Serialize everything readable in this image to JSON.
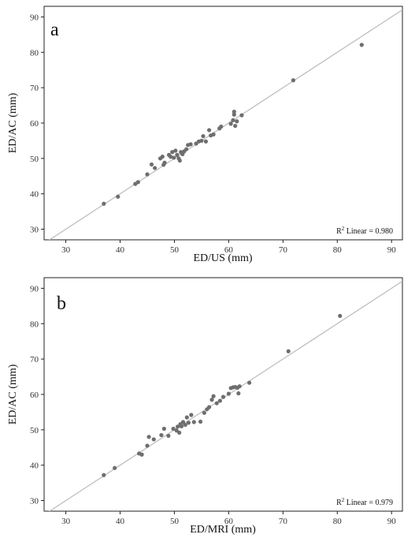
{
  "chart_data": [
    {
      "type": "scatter",
      "panel_label": "a",
      "xlabel": "ED/US (mm)",
      "ylabel": "ED/AC (mm)",
      "xlim": [
        26,
        92
      ],
      "ylim": [
        27,
        93
      ],
      "xticks": [
        30,
        40,
        50,
        60,
        70,
        80,
        90
      ],
      "yticks": [
        30,
        40,
        50,
        60,
        70,
        80,
        90
      ],
      "grid": false,
      "fit_line": {
        "type": "linear",
        "intercept": 0,
        "slope": 1,
        "color": "#bfbfbf"
      },
      "annotation": {
        "r2_prefix": "R",
        "r2_sup": "2",
        "r2_text": " Linear = 0.980"
      },
      "point_color": "#6e6e6e",
      "points": [
        [
          37,
          37.2
        ],
        [
          39.6,
          39.2
        ],
        [
          42.8,
          42.8
        ],
        [
          43.3,
          43.3
        ],
        [
          45,
          45.5
        ],
        [
          45.8,
          48.3
        ],
        [
          46.4,
          47.3
        ],
        [
          47.4,
          50
        ],
        [
          47.8,
          50.5
        ],
        [
          48,
          48.2
        ],
        [
          48.2,
          48.8
        ],
        [
          49,
          51
        ],
        [
          49.3,
          50.5
        ],
        [
          49.6,
          51.8
        ],
        [
          49.9,
          50.2
        ],
        [
          50.2,
          52.2
        ],
        [
          50.5,
          51
        ],
        [
          50.8,
          50
        ],
        [
          51,
          49.4
        ],
        [
          51.2,
          51.8
        ],
        [
          51.5,
          51.2
        ],
        [
          51.8,
          52
        ],
        [
          52.2,
          52.6
        ],
        [
          52.5,
          53.8
        ],
        [
          53,
          54
        ],
        [
          54,
          54.2
        ],
        [
          54.5,
          54.8
        ],
        [
          55,
          55
        ],
        [
          55.3,
          56.3
        ],
        [
          55.8,
          54.8
        ],
        [
          56.4,
          58
        ],
        [
          56.7,
          56.5
        ],
        [
          57.2,
          56.8
        ],
        [
          58.3,
          58.5
        ],
        [
          58.6,
          59
        ],
        [
          60.4,
          59.8
        ],
        [
          60.8,
          60.8
        ],
        [
          61,
          62.4
        ],
        [
          61,
          63.2
        ],
        [
          61.2,
          59.2
        ],
        [
          61.5,
          60.5
        ],
        [
          62.4,
          62.2
        ],
        [
          71.9,
          72.1
        ],
        [
          84.5,
          82.1
        ]
      ]
    },
    {
      "type": "scatter",
      "panel_label": "b",
      "xlabel": "ED/MRI (mm)",
      "ylabel": "ED/AC (mm)",
      "xlim": [
        26,
        92
      ],
      "ylim": [
        27,
        93
      ],
      "xticks": [
        30,
        40,
        50,
        60,
        70,
        80,
        90
      ],
      "yticks": [
        30,
        40,
        50,
        60,
        70,
        80,
        90
      ],
      "grid": false,
      "fit_line": {
        "type": "linear",
        "intercept": 0,
        "slope": 1,
        "color": "#bfbfbf"
      },
      "annotation": {
        "r2_prefix": "R",
        "r2_sup": "2",
        "r2_text": " Linear = 0.979"
      },
      "point_color": "#6e6e6e",
      "points": [
        [
          37,
          37.2
        ],
        [
          39,
          39.2
        ],
        [
          43.5,
          43.3
        ],
        [
          44,
          43
        ],
        [
          45,
          45.5
        ],
        [
          45.3,
          48
        ],
        [
          46.2,
          47.3
        ],
        [
          47.6,
          48.5
        ],
        [
          48.1,
          50.3
        ],
        [
          48.9,
          48.3
        ],
        [
          49.8,
          50.3
        ],
        [
          50.4,
          49.8
        ],
        [
          50.6,
          50.9
        ],
        [
          50.9,
          49.2
        ],
        [
          51.1,
          51.6
        ],
        [
          51.3,
          51
        ],
        [
          51.6,
          52.2
        ],
        [
          52,
          51.4
        ],
        [
          52.3,
          53.5
        ],
        [
          52.6,
          52
        ],
        [
          53.1,
          54.2
        ],
        [
          53.6,
          52.2
        ],
        [
          54.8,
          52.3
        ],
        [
          55.5,
          54.8
        ],
        [
          56,
          55.8
        ],
        [
          56.4,
          56.4
        ],
        [
          56.9,
          58.5
        ],
        [
          57.2,
          59.5
        ],
        [
          57.8,
          57.5
        ],
        [
          58.4,
          58.2
        ],
        [
          59,
          59.3
        ],
        [
          60,
          60.2
        ],
        [
          60.4,
          61.8
        ],
        [
          60.8,
          62
        ],
        [
          61.2,
          62.1
        ],
        [
          61.6,
          61.9
        ],
        [
          61.8,
          60.3
        ],
        [
          62,
          62.3
        ],
        [
          63.8,
          63.3
        ],
        [
          71,
          72.2
        ],
        [
          80.5,
          82.2
        ]
      ]
    }
  ]
}
